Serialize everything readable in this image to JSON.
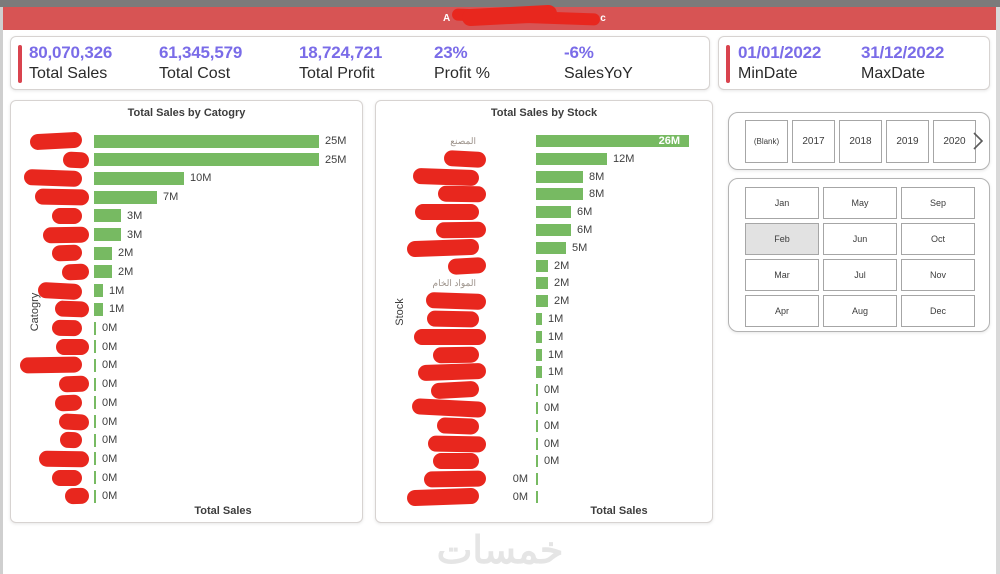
{
  "header": {
    "fragment_left": "A",
    "fragment_right": "c",
    "redacted": true
  },
  "kpi_card": {
    "items": [
      {
        "value": "80,070,326",
        "label": "Total Sales"
      },
      {
        "value": "61,345,579",
        "label": "Total Cost"
      },
      {
        "value": "18,724,721",
        "label": "Total Profit"
      },
      {
        "value": "23%",
        "label": "Profit %"
      },
      {
        "value": "-6%",
        "label": "SalesYoY"
      }
    ]
  },
  "date_card": {
    "items": [
      {
        "value": "01/01/2022",
        "label": "MinDate"
      },
      {
        "value": "31/12/2022",
        "label": "MaxDate"
      }
    ]
  },
  "chart_data": [
    {
      "type": "bar",
      "orientation": "horizontal",
      "title": "Total Sales by Catogry",
      "xlabel": "Total Sales",
      "ylabel": "Catogry",
      "unit": "M",
      "xlim": [
        0,
        25
      ],
      "values": [
        25,
        25,
        10,
        7,
        3,
        3,
        2,
        2,
        1,
        1,
        0,
        0,
        0,
        0,
        0,
        0,
        0,
        0,
        0,
        0
      ],
      "value_labels": [
        "25M",
        "25M",
        "10M",
        "7M",
        "3M",
        "3M",
        "2M",
        "2M",
        "1M",
        "1M",
        "0M",
        "0M",
        "0M",
        "0M",
        "0M",
        "0M",
        "0M",
        "0M",
        "0M",
        "0M"
      ],
      "categories": [
        "",
        "",
        "",
        "",
        "",
        "",
        "",
        "",
        "",
        "",
        "",
        "",
        "",
        "",
        "",
        "",
        "",
        "",
        "",
        ""
      ],
      "categories_redacted": true,
      "bar_color": "#77ba62"
    },
    {
      "type": "bar",
      "orientation": "horizontal",
      "title": "Total Sales by Stock",
      "xlabel": "Total Sales",
      "ylabel": "Stock",
      "unit": "M",
      "xlim": [
        0,
        26
      ],
      "values": [
        26,
        12,
        8,
        8,
        6,
        6,
        5,
        2,
        2,
        2,
        1,
        1,
        1,
        1,
        0,
        0,
        0,
        0,
        0,
        0,
        0
      ],
      "value_labels": [
        "26M",
        "12M",
        "8M",
        "8M",
        "6M",
        "6M",
        "5M",
        "2M",
        "2M",
        "2M",
        "1M",
        "1M",
        "1M",
        "1M",
        "0M",
        "0M",
        "0M",
        "0M",
        "0M",
        "0M",
        "0M"
      ],
      "categories": [
        "المصنع",
        "",
        "",
        "",
        "",
        "",
        "",
        "",
        "المواد الخام",
        "",
        "",
        "",
        "",
        "",
        "",
        "",
        "",
        "",
        "",
        "",
        ""
      ],
      "categories_redacted": true,
      "inside_label_indices": [
        0
      ],
      "left_label_indices": [
        19,
        20
      ],
      "bar_color": "#77ba62"
    }
  ],
  "year_slicer": {
    "items": [
      "(Blank)",
      "2017",
      "2018",
      "2019",
      "2020"
    ],
    "next_icon": "chevron-right"
  },
  "month_slicer": {
    "items": [
      "Jan",
      "Feb",
      "Mar",
      "Apr",
      "May",
      "Jun",
      "Jul",
      "Aug",
      "Sep",
      "Oct",
      "Nov",
      "Dec"
    ],
    "selected": "Feb"
  },
  "watermark": "خمسات",
  "colors": {
    "header_red": "#d75454",
    "scribble_red": "#e8271e",
    "accent_red": "#d9434e",
    "kpi_purple": "#7a6ce8",
    "bar_green": "#77ba62",
    "watermark_gray": "#e5e5e5"
  }
}
